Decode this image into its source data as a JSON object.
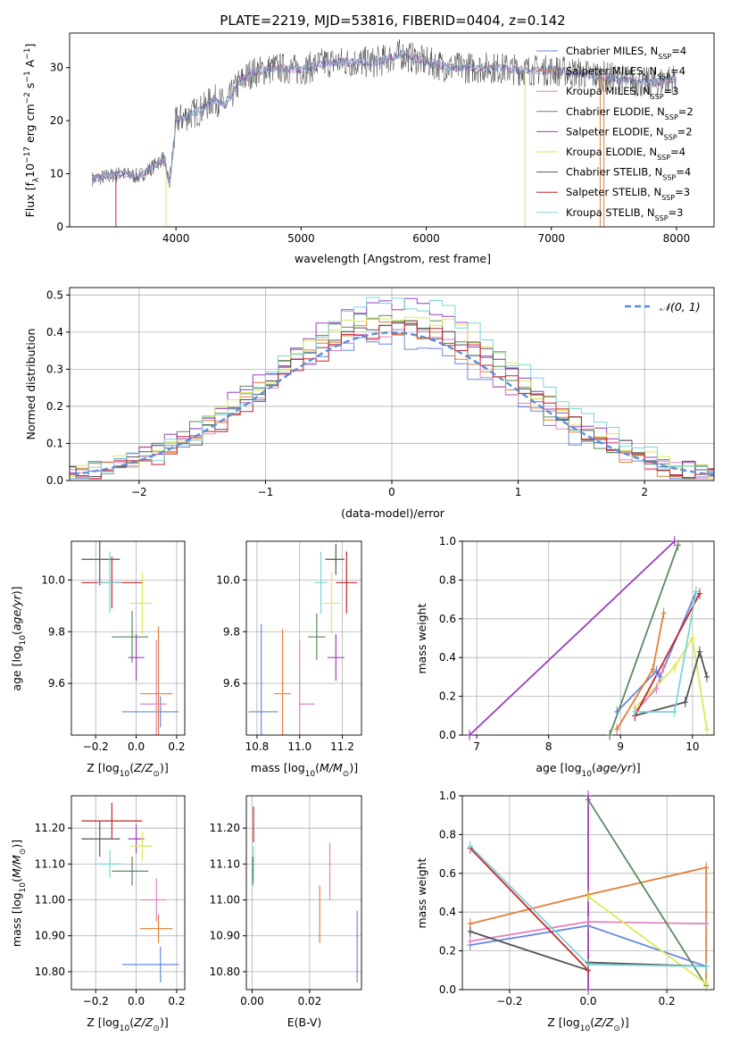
{
  "figure_title": "PLATE=2219, MJD=53816, FIBERID=0404, z=0.142",
  "colors": {
    "Chabrier MILES": "#6688dd",
    "Salpeter MILES": "#e47f36",
    "Kroupa MILES": "#e085c2",
    "Chabrier ELODIE": "#5a8a5f",
    "Salpeter ELODIE": "#9b3fbf",
    "Kroupa ELODIE": "#d9ea5a",
    "Chabrier STELIB": "#555555",
    "Salpeter STELIB": "#c8242a",
    "Kroupa STELIB": "#7dd3d8",
    "normal_curve": "#5b8fd6",
    "grid": "#b0b0b0"
  },
  "chart_data": [
    {
      "id": "spectrum",
      "type": "line",
      "title": "PLATE=2219, MJD=53816, FIBERID=0404, z=0.142",
      "xlabel": "wavelength [Angstrom, rest frame]",
      "ylabel": "Flux [f_λ10^-17 erg cm^-2 s^-1 A^-1]",
      "xlim": [
        3150,
        8300
      ],
      "ylim": [
        0,
        36.5
      ],
      "xticks": [
        4000,
        5000,
        6000,
        7000,
        8000
      ],
      "yticks": [
        0,
        10,
        20,
        30
      ],
      "legend_position": "top-right",
      "legend": [
        {
          "label": "Chabrier MILES, N",
          "sub": "SSP",
          "suffix": "=4"
        },
        {
          "label": "Salpeter MILES, N",
          "sub": "SSP",
          "suffix": "=4"
        },
        {
          "label": "Kroupa MILES, N",
          "sub": "SSP",
          "suffix": "=3"
        },
        {
          "label": "Chabrier ELODIE, N",
          "sub": "SSP",
          "suffix": "=2"
        },
        {
          "label": "Salpeter ELODIE, N",
          "sub": "SSP",
          "suffix": "=2"
        },
        {
          "label": "Kroupa ELODIE, N",
          "sub": "SSP",
          "suffix": "=4"
        },
        {
          "label": "Chabrier STELIB, N",
          "sub": "SSP",
          "suffix": "=4"
        },
        {
          "label": "Salpeter STELIB, N",
          "sub": "SSP",
          "suffix": "=3"
        },
        {
          "label": "Kroupa STELIB, N",
          "sub": "SSP",
          "suffix": "=3"
        }
      ],
      "envelope_points": [
        [
          3330,
          9
        ],
        [
          3450,
          9.5
        ],
        [
          3560,
          10
        ],
        [
          3700,
          9.5
        ],
        [
          3800,
          11
        ],
        [
          3900,
          13
        ],
        [
          3950,
          8
        ],
        [
          4000,
          20
        ],
        [
          4100,
          21
        ],
        [
          4200,
          22
        ],
        [
          4300,
          24
        ],
        [
          4400,
          23
        ],
        [
          4500,
          27
        ],
        [
          4600,
          29
        ],
        [
          4800,
          30
        ],
        [
          5000,
          29.5
        ],
        [
          5200,
          31
        ],
        [
          5400,
          31
        ],
        [
          5600,
          31
        ],
        [
          5800,
          32.5
        ],
        [
          6000,
          31
        ],
        [
          6200,
          30
        ],
        [
          6500,
          30
        ],
        [
          6800,
          29.5
        ],
        [
          7000,
          29.5
        ],
        [
          7200,
          29
        ],
        [
          7500,
          28
        ],
        [
          7800,
          27
        ],
        [
          8000,
          28
        ]
      ],
      "drop_lines": [
        [
          3520,
          "Salpeter STELIB"
        ],
        [
          3920,
          "Kroupa ELODIE"
        ],
        [
          6790,
          "Kroupa ELODIE"
        ],
        [
          7390,
          "Salpeter MILES"
        ],
        [
          7420,
          "Salpeter MILES"
        ]
      ]
    },
    {
      "id": "residual_hist",
      "type": "bar",
      "xlabel": "(data-model)/error",
      "ylabel": "Normed distribution",
      "xlim": [
        -2.55,
        2.55
      ],
      "ylim": [
        0,
        0.52
      ],
      "xticks": [
        -2,
        -1,
        0,
        1,
        2
      ],
      "yticks": [
        0.0,
        0.1,
        0.2,
        0.3,
        0.4,
        0.5
      ],
      "legend_position": "top-right",
      "legend_label": "N(0,1)",
      "bin_width": 0.1,
      "series_peak_heights": [
        0.4,
        0.43,
        0.42,
        0.45,
        0.49,
        0.47,
        0.44,
        0.42,
        0.5
      ]
    },
    {
      "id": "age_vs_Z",
      "type": "scatter",
      "xlabel": "Z [log10(Z/Z⊙)]",
      "ylabel": "age [log10(age/yr)]",
      "xlim": [
        -0.32,
        0.24
      ],
      "ylim": [
        9.4,
        10.15
      ],
      "xticks": [
        -0.2,
        0.0,
        0.2
      ],
      "yticks": [
        9.6,
        9.8,
        10.0
      ],
      "points": [
        {
          "series": "Chabrier MILES",
          "x": 0.12,
          "y": 9.49,
          "xerr": [
            0.19,
            0.09
          ],
          "yerr": 0.06
        },
        {
          "series": "Salpeter MILES",
          "x": 0.11,
          "y": 9.56,
          "xerr": [
            0.09,
            0.07
          ],
          "yerr": 0.26
        },
        {
          "series": "Kroupa MILES",
          "x": 0.1,
          "y": 9.52,
          "xerr": [
            0.08,
            0.05
          ],
          "yerr": 0.25
        },
        {
          "series": "Chabrier ELODIE",
          "x": -0.02,
          "y": 9.78,
          "xerr": [
            0.1,
            0.08
          ],
          "yerr": 0.1
        },
        {
          "series": "Salpeter ELODIE",
          "x": 0.0,
          "y": 9.7,
          "xerr": [
            0.04,
            0.04
          ],
          "yerr": 0.09
        },
        {
          "series": "Kroupa ELODIE",
          "x": 0.03,
          "y": 9.91,
          "xerr": [
            0.06,
            0.05
          ],
          "yerr": 0.12
        },
        {
          "series": "Chabrier STELIB",
          "x": -0.18,
          "y": 10.08,
          "xerr": [
            0.09,
            0.1
          ],
          "yerr": 0.1
        },
        {
          "series": "Salpeter STELIB",
          "x": -0.12,
          "y": 9.99,
          "xerr": [
            0.15,
            0.15
          ],
          "yerr": 0.1
        },
        {
          "series": "Kroupa STELIB",
          "x": -0.13,
          "y": 9.99,
          "xerr": [
            0.06,
            0.06
          ],
          "yerr": 0.12
        }
      ]
    },
    {
      "id": "age_vs_mass",
      "type": "scatter",
      "xlabel": "mass [log10(M/M⊙)]",
      "ylabel": "",
      "xlim": [
        10.75,
        11.29
      ],
      "ylim": [
        9.4,
        10.15
      ],
      "xticks": [
        10.8,
        11.0,
        11.2
      ],
      "yticks": [
        9.6,
        9.8,
        10.0
      ],
      "points": [
        {
          "series": "Chabrier MILES",
          "x": 10.82,
          "y": 9.49,
          "xerr": [
            0.06,
            0.08
          ],
          "yerr": 0.34
        },
        {
          "series": "Salpeter MILES",
          "x": 10.92,
          "y": 9.56,
          "xerr": [
            0.04,
            0.04
          ],
          "yerr": 0.25
        },
        {
          "series": "Kroupa MILES",
          "x": 11.0,
          "y": 9.52,
          "xerr": [
            0.0,
            0.07
          ],
          "yerr": 0.25
        },
        {
          "series": "Chabrier ELODIE",
          "x": 11.08,
          "y": 9.78,
          "xerr": [
            0.04,
            0.04
          ],
          "yerr": 0.09
        },
        {
          "series": "Salpeter ELODIE",
          "x": 11.17,
          "y": 9.7,
          "xerr": [
            0.04,
            0.04
          ],
          "yerr": 0.09
        },
        {
          "series": "Kroupa ELODIE",
          "x": 11.15,
          "y": 9.91,
          "xerr": [
            0.04,
            0.04
          ],
          "yerr": 0.12
        },
        {
          "series": "Chabrier STELIB",
          "x": 11.17,
          "y": 10.08,
          "xerr": [
            0.05,
            0.04
          ],
          "yerr": 0.06
        },
        {
          "series": "Salpeter STELIB",
          "x": 11.22,
          "y": 9.99,
          "xerr": [
            0.05,
            0.05
          ],
          "yerr": 0.12
        },
        {
          "series": "Kroupa STELIB",
          "x": 11.1,
          "y": 9.99,
          "xerr": [
            0.03,
            0.03
          ],
          "yerr": 0.12
        }
      ]
    },
    {
      "id": "massweight_vs_age",
      "type": "line",
      "xlabel": "age [log10(age/yr)]",
      "ylabel": "mass weight",
      "xlim": [
        6.8,
        10.3
      ],
      "ylim": [
        0,
        1
      ],
      "xticks": [
        7,
        8,
        9,
        10
      ],
      "yticks": [
        0.0,
        0.2,
        0.4,
        0.6,
        0.8,
        1.0
      ],
      "series": [
        {
          "name": "Chabrier MILES",
          "points": [
            [
              8.95,
              0.12
            ],
            [
              9.5,
              0.33
            ],
            [
              9.55,
              0.3
            ],
            [
              10.05,
              0.74
            ]
          ]
        },
        {
          "name": "Salpeter MILES",
          "points": [
            [
              8.95,
              0.03
            ],
            [
              9.45,
              0.34
            ],
            [
              9.6,
              0.63
            ]
          ]
        },
        {
          "name": "Kroupa MILES",
          "points": [
            [
              9.2,
              0.12
            ],
            [
              9.5,
              0.24
            ],
            [
              9.6,
              0.35
            ]
          ]
        },
        {
          "name": "Chabrier ELODIE",
          "points": [
            [
              8.85,
              0.0
            ],
            [
              9.8,
              0.98
            ]
          ]
        },
        {
          "name": "Salpeter ELODIE",
          "points": [
            [
              6.9,
              0.0
            ],
            [
              9.75,
              1.0
            ]
          ]
        },
        {
          "name": "Kroupa ELODIE",
          "points": [
            [
              9.2,
              0.14
            ],
            [
              9.75,
              0.35
            ],
            [
              10.0,
              0.5
            ],
            [
              10.2,
              0.03
            ]
          ]
        },
        {
          "name": "Chabrier STELIB",
          "points": [
            [
              9.2,
              0.1
            ],
            [
              9.9,
              0.17
            ],
            [
              10.1,
              0.43
            ],
            [
              10.2,
              0.3
            ]
          ]
        },
        {
          "name": "Salpeter STELIB",
          "points": [
            [
              9.2,
              0.1
            ],
            [
              10.1,
              0.73
            ]
          ]
        },
        {
          "name": "Kroupa STELIB",
          "points": [
            [
              9.2,
              0.12
            ],
            [
              9.75,
              0.12
            ],
            [
              10.05,
              0.74
            ]
          ]
        }
      ]
    },
    {
      "id": "mass_vs_Z",
      "type": "scatter",
      "xlabel": "Z [log10(Z/Z⊙)]",
      "ylabel": "mass [log10(M/M⊙)]",
      "xlim": [
        -0.32,
        0.24
      ],
      "ylim": [
        10.75,
        11.29
      ],
      "xticks": [
        -0.2,
        0.0,
        0.2
      ],
      "yticks": [
        10.8,
        10.9,
        11.0,
        11.1,
        11.2
      ],
      "points": [
        {
          "series": "Chabrier MILES",
          "x": 0.12,
          "y": 10.82,
          "xerr": [
            0.19,
            0.09
          ],
          "yerr": 0.05
        },
        {
          "series": "Salpeter MILES",
          "x": 0.11,
          "y": 10.92,
          "xerr": [
            0.09,
            0.07
          ],
          "yerr": 0.04
        },
        {
          "series": "Kroupa MILES",
          "x": 0.1,
          "y": 11.0,
          "xerr": [
            0.08,
            0.05
          ],
          "yerr": 0.06
        },
        {
          "series": "Chabrier ELODIE",
          "x": -0.02,
          "y": 11.08,
          "xerr": [
            0.1,
            0.08
          ],
          "yerr": 0.04
        },
        {
          "series": "Salpeter ELODIE",
          "x": 0.0,
          "y": 11.17,
          "xerr": [
            0.04,
            0.04
          ],
          "yerr": 0.04
        },
        {
          "series": "Kroupa ELODIE",
          "x": 0.03,
          "y": 11.15,
          "xerr": [
            0.06,
            0.05
          ],
          "yerr": 0.04
        },
        {
          "series": "Chabrier STELIB",
          "x": -0.18,
          "y": 11.17,
          "xerr": [
            0.09,
            0.1
          ],
          "yerr": 0.05
        },
        {
          "series": "Salpeter STELIB",
          "x": -0.12,
          "y": 11.22,
          "xerr": [
            0.15,
            0.15
          ],
          "yerr": 0.05
        },
        {
          "series": "Kroupa STELIB",
          "x": -0.13,
          "y": 11.1,
          "xerr": [
            0.06,
            0.06
          ],
          "yerr": 0.04
        }
      ]
    },
    {
      "id": "mass_vs_ebv",
      "type": "scatter",
      "xlabel": "E(B-V)",
      "ylabel": "",
      "xlim": [
        -0.002,
        0.038
      ],
      "ylim": [
        10.75,
        11.29
      ],
      "xticks": [
        0.0,
        0.02
      ],
      "yticks": [
        10.8,
        10.9,
        11.0,
        11.1,
        11.2
      ],
      "points": [
        {
          "series": "Chabrier MILES",
          "x": 0.0365,
          "y": 10.87,
          "yerr": 0.1
        },
        {
          "series": "Salpeter MILES",
          "x": 0.0235,
          "y": 10.96,
          "yerr": 0.08
        },
        {
          "series": "Kroupa MILES",
          "x": 0.027,
          "y": 11.08,
          "yerr": 0.08
        },
        {
          "series": "Salpeter STELIB",
          "x": 0.0005,
          "y": 11.21,
          "yerr": 0.05
        },
        {
          "series": "Kroupa STELIB",
          "x": 0.0005,
          "y": 11.1,
          "yerr": 0.05
        },
        {
          "series": "Chabrier ELODIE",
          "x": 0.0002,
          "y": 11.08,
          "yerr": 0.04
        }
      ]
    },
    {
      "id": "massweight_vs_Z",
      "type": "line",
      "xlabel": "Z [log10(Z/Z⊙)]",
      "ylabel": "mass weight",
      "xlim": [
        -0.32,
        0.32
      ],
      "ylim": [
        0,
        1
      ],
      "xticks": [
        -0.2,
        0.0,
        0.2
      ],
      "yticks": [
        0.0,
        0.2,
        0.4,
        0.6,
        0.8,
        1.0
      ],
      "series": [
        {
          "name": "Chabrier MILES",
          "points": [
            [
              -0.3,
              0.23
            ],
            [
              0.0,
              0.33
            ],
            [
              0.3,
              0.12
            ]
          ]
        },
        {
          "name": "Salpeter MILES",
          "points": [
            [
              -0.3,
              0.34
            ],
            [
              0.0,
              0.49
            ],
            [
              0.3,
              0.63
            ],
            [
              0.3,
              0.03
            ]
          ]
        },
        {
          "name": "Kroupa MILES",
          "points": [
            [
              -0.3,
              0.25
            ],
            [
              0.0,
              0.35
            ],
            [
              0.3,
              0.34
            ]
          ]
        },
        {
          "name": "Chabrier ELODIE",
          "points": [
            [
              0.0,
              0.98
            ],
            [
              0.3,
              0.02
            ]
          ]
        },
        {
          "name": "Salpeter ELODIE",
          "points": [
            [
              0.0,
              0.0
            ],
            [
              0.0,
              1.0
            ]
          ]
        },
        {
          "name": "Kroupa ELODIE",
          "points": [
            [
              0.0,
              0.48
            ],
            [
              0.3,
              0.03
            ]
          ]
        },
        {
          "name": "Chabrier STELIB",
          "points": [
            [
              -0.3,
              0.3
            ],
            [
              0.0,
              0.1
            ],
            [
              0.0,
              0.14
            ],
            [
              0.3,
              0.12
            ]
          ]
        },
        {
          "name": "Salpeter STELIB",
          "points": [
            [
              -0.3,
              0.73
            ],
            [
              0.0,
              0.1
            ]
          ]
        },
        {
          "name": "Kroupa STELIB",
          "points": [
            [
              -0.3,
              0.74
            ],
            [
              0.0,
              0.13
            ],
            [
              0.3,
              0.12
            ]
          ]
        }
      ]
    }
  ]
}
